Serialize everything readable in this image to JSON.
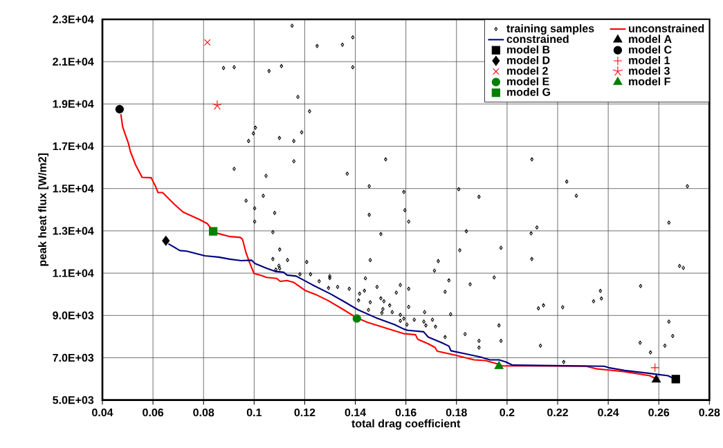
{
  "chart_data": {
    "type": "scatter",
    "xlabel": "total drag coefficient",
    "ylabel": "peak heat flux [W/m2]",
    "xlim": [
      0.04,
      0.28
    ],
    "ylim": [
      5000,
      23000
    ],
    "xticks": [
      0.04,
      0.06,
      0.08,
      0.1,
      0.12,
      0.14,
      0.16,
      0.18,
      0.2,
      0.22,
      0.24,
      0.26,
      0.28
    ],
    "yticks": [
      {
        "value": 5000,
        "label": "5.0E+03"
      },
      {
        "value": 7000,
        "label": "7.0E+03"
      },
      {
        "value": 9000,
        "label": "9.0E+03"
      },
      {
        "value": 11000,
        "label": "1.1E+04"
      },
      {
        "value": 13000,
        "label": "1.3E+04"
      },
      {
        "value": 15000,
        "label": "1.5E+04"
      },
      {
        "value": 17000,
        "label": "1.7E+04"
      },
      {
        "value": 19000,
        "label": "1.9E+04"
      },
      {
        "value": 21000,
        "label": "2.1E+04"
      },
      {
        "value": 23000,
        "label": "2.3E+04"
      }
    ],
    "grid": true,
    "legend": "top right",
    "series": [
      {
        "name": "training samples",
        "type": "scatter",
        "marker": "diamond-open",
        "color": "#000000",
        "x": [
          0.115,
          0.1249,
          0.1349,
          0.139,
          0.139,
          0.0879,
          0.0921,
          0.1059,
          0.1108,
          0.1173,
          0.1219,
          0.1005,
          0.0997,
          0.0978,
          0.11,
          0.1157,
          0.1188,
          0.1157,
          0.0921,
          0.1047,
          0.1368,
          0.152,
          0.1455,
          0.1592,
          0.0968,
          0.1036,
          0.1002,
          0.1081,
          0.1455,
          0.1596,
          0.1002,
          0.1074,
          0.1501,
          0.1101,
          0.1074,
          0.1132,
          0.1208,
          0.1459,
          0.1098,
          0.1101,
          0.1086,
          0.1181,
          0.1223,
          0.1299,
          0.1299,
          0.144,
          0.1257,
          0.133,
          0.1294,
          0.1376,
          0.1486,
          0.1578,
          0.1436,
          0.1417,
          0.1562,
          0.1413,
          0.1459,
          0.1501,
          0.1513,
          0.1536,
          0.1452,
          0.1509,
          0.1505,
          0.1546,
          0.1578,
          0.1578,
          0.1592,
          0.1604,
          0.2098,
          0.2236,
          0.2274,
          0.1809,
          0.1889,
          0.2713,
          0.1611,
          0.264,
          0.1839,
          0.2118,
          0.2095,
          0.1813,
          0.1976,
          0.2098,
          0.1728,
          0.1713,
          0.2682,
          0.2697,
          0.1949,
          0.177,
          0.1854,
          0.1611,
          0.1755,
          0.2528,
          0.2369,
          0.2373,
          0.2342,
          0.2124,
          0.2144,
          0.222,
          0.1611,
          0.1674,
          0.1777,
          0.1633,
          0.1671,
          0.1679,
          0.1705,
          0.1717,
          0.264,
          0.1968,
          0.1834,
          0.1755,
          0.1889,
          0.1976,
          0.1889,
          0.2132,
          0.2526,
          0.2655,
          0.2624,
          0.2567,
          0.2224
        ],
        "values": [
          22700,
          21740,
          21800,
          22150,
          20740,
          20700,
          20740,
          20560,
          20790,
          19330,
          18650,
          17880,
          17610,
          17250,
          17390,
          17250,
          17660,
          16290,
          15930,
          15600,
          15700,
          16380,
          15110,
          14840,
          14430,
          14660,
          14070,
          13850,
          13760,
          13980,
          13440,
          12940,
          12850,
          12120,
          11670,
          11620,
          11530,
          11620,
          11350,
          11220,
          11170,
          10950,
          10950,
          10860,
          10770,
          10760,
          10620,
          10350,
          10300,
          10260,
          10350,
          10440,
          10170,
          10030,
          10080,
          9710,
          9620,
          9810,
          9670,
          9480,
          9260,
          9300,
          9120,
          9160,
          9030,
          8750,
          8850,
          8570,
          16380,
          15330,
          14660,
          14970,
          14610,
          15110,
          13440,
          13390,
          12980,
          13160,
          12880,
          12080,
          12200,
          11670,
          11570,
          11120,
          11340,
          11250,
          10800,
          10660,
          10470,
          10260,
          10120,
          10390,
          10160,
          9800,
          9670,
          9340,
          9480,
          9390,
          9400,
          9160,
          9060,
          8800,
          8710,
          8530,
          8800,
          8470,
          8710,
          8530,
          8120,
          7980,
          7800,
          7800,
          7480,
          7570,
          7710,
          8030,
          7570,
          7250,
          6800
        ]
      },
      {
        "name": "unconstrained",
        "type": "line",
        "marker": "none",
        "line_style": "solid",
        "color": "#ff0000",
        "x": [
          0.0473,
          0.048,
          0.0489,
          0.0502,
          0.0511,
          0.0532,
          0.0557,
          0.0593,
          0.0611,
          0.062,
          0.0638,
          0.0683,
          0.0719,
          0.0778,
          0.0814,
          0.0838,
          0.0859,
          0.0904,
          0.0945,
          0.0954,
          0.0968,
          0.0981,
          0.0999,
          0.1031,
          0.1049,
          0.1089,
          0.1103,
          0.113,
          0.1157,
          0.1202,
          0.1247,
          0.1293,
          0.1347,
          0.1406,
          0.1446,
          0.1518,
          0.1591,
          0.1638,
          0.1647,
          0.1688,
          0.1715,
          0.1724,
          0.1796,
          0.1869,
          0.1914,
          0.1954,
          0.1981,
          0.2312,
          0.2357,
          0.2402,
          0.2465,
          0.2565,
          0.2587
        ],
        "values": [
          18520,
          17930,
          17600,
          17170,
          16740,
          16100,
          15530,
          15510,
          15080,
          14810,
          14810,
          14270,
          13890,
          13570,
          13350,
          12980,
          12870,
          12730,
          12690,
          12600,
          11960,
          11530,
          10990,
          10880,
          10800,
          10750,
          10610,
          10650,
          10560,
          10180,
          9970,
          9700,
          9320,
          8890,
          8680,
          8410,
          8140,
          8090,
          7870,
          7660,
          7490,
          7310,
          7120,
          6900,
          6870,
          6740,
          6620,
          6600,
          6470,
          6420,
          6340,
          6150,
          6020
        ]
      },
      {
        "name": "constrained",
        "type": "line",
        "marker": "none",
        "line_style": "solid",
        "color": "#000080",
        "x": [
          0.0661,
          0.0706,
          0.0733,
          0.076,
          0.0805,
          0.0859,
          0.0904,
          0.0949,
          0.099,
          0.1004,
          0.1049,
          0.1085,
          0.1117,
          0.113,
          0.1166,
          0.123,
          0.1302,
          0.1365,
          0.141,
          0.1482,
          0.1555,
          0.1591,
          0.1607,
          0.167,
          0.1688,
          0.1742,
          0.177,
          0.1778,
          0.1842,
          0.1896,
          0.1932,
          0.1968,
          0.1995,
          0.2022,
          0.2384,
          0.2402,
          0.2465,
          0.2565,
          0.2637,
          0.2655
        ],
        "values": [
          12390,
          12070,
          12040,
          11960,
          11820,
          11760,
          11660,
          11590,
          11610,
          11450,
          11230,
          11080,
          11040,
          10910,
          10860,
          10450,
          10020,
          9590,
          9270,
          8890,
          8570,
          8360,
          8300,
          8230,
          7980,
          7710,
          7550,
          7330,
          7170,
          7030,
          6900,
          6900,
          6800,
          6650,
          6600,
          6530,
          6400,
          6260,
          6150,
          6040
        ]
      },
      {
        "name": "model A",
        "type": "scatter",
        "marker": "triangle",
        "color": "#000000",
        "x": [
          0.259
        ],
        "values": [
          5960
        ]
      },
      {
        "name": "model B",
        "type": "scatter",
        "marker": "square",
        "color": "#000000",
        "x": [
          0.2667
        ],
        "values": [
          5990
        ]
      },
      {
        "name": "model C",
        "type": "scatter",
        "marker": "circle",
        "color": "#000000",
        "x": [
          0.0468
        ],
        "values": [
          18750
        ]
      },
      {
        "name": "model D",
        "type": "scatter",
        "marker": "diamond",
        "color": "#000000",
        "x": [
          0.0651
        ],
        "values": [
          12530
        ]
      },
      {
        "name": "model 1",
        "type": "scatter",
        "marker": "plus",
        "color": "#ff0000",
        "x": [
          0.2585
        ],
        "values": [
          6530
        ]
      },
      {
        "name": "model 2",
        "type": "scatter",
        "marker": "cross",
        "color": "#ff0000",
        "x": [
          0.0815
        ],
        "values": [
          21910
        ]
      },
      {
        "name": "model 3",
        "type": "scatter",
        "color": "#ff0000",
        "x": [
          0.0854
        ],
        "values": [
          18930
        ]
      },
      {
        "name": "model E",
        "type": "scatter",
        "marker": "circle",
        "color": "#008000",
        "x": [
          0.1406
        ],
        "values": [
          8860
        ]
      },
      {
        "name": "model F",
        "type": "scatter",
        "marker": "triangle",
        "color": "#008000",
        "x": [
          0.1968
        ],
        "values": [
          6600
        ]
      },
      {
        "name": "model G",
        "type": "scatter",
        "marker": "square",
        "color": "#008000",
        "x": [
          0.0838
        ],
        "values": [
          12980
        ]
      }
    ]
  }
}
